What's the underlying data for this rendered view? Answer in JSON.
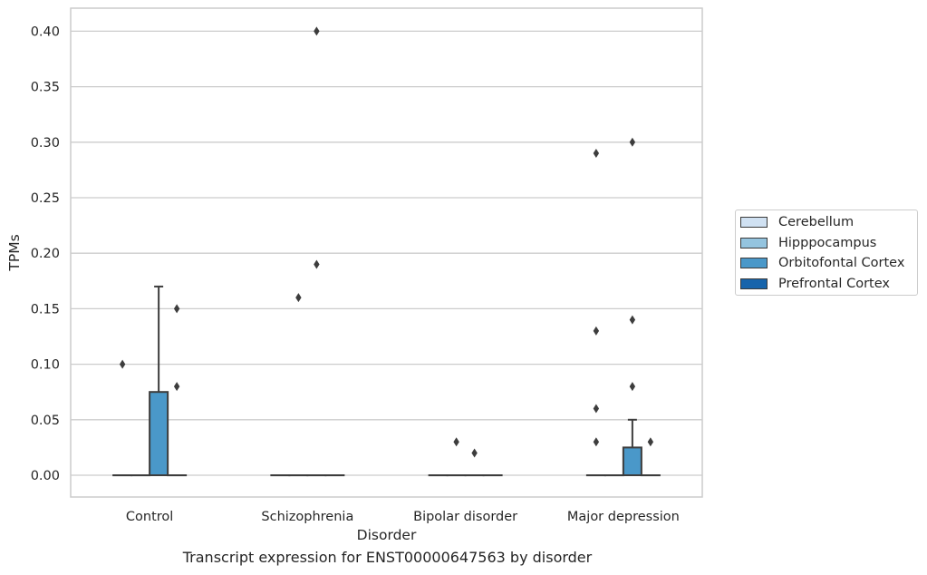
{
  "caption": "Transcript expression for ENST00000647563 by disorder",
  "chart_data": {
    "type": "box",
    "title": "",
    "xlabel": "Disorder",
    "ylabel": "TPMs",
    "ylim": [
      -0.019,
      0.42
    ],
    "yticks": [
      0.0,
      0.05,
      0.1,
      0.15,
      0.2,
      0.25,
      0.3,
      0.35,
      0.4
    ],
    "ytick_labels": [
      "0.00",
      "0.05",
      "0.10",
      "0.15",
      "0.20",
      "0.25",
      "0.30",
      "0.35",
      "0.40"
    ],
    "grid": true,
    "legend_position": "right",
    "categories": [
      "Control",
      "Schizophrenia",
      "Bipolar disorder",
      "Major depression"
    ],
    "series": [
      {
        "name": "Cerebellum",
        "color": "#d0e1f2",
        "boxes": [
          {
            "q1": 0,
            "median": 0,
            "q3": 0,
            "whisker_low": 0,
            "whisker_high": 0,
            "outliers": [
              0.1
            ]
          },
          {
            "q1": 0,
            "median": 0,
            "q3": 0,
            "whisker_low": 0,
            "whisker_high": 0,
            "outliers": []
          },
          {
            "q1": 0,
            "median": 0,
            "q3": 0,
            "whisker_low": 0,
            "whisker_high": 0,
            "outliers": []
          },
          {
            "q1": 0,
            "median": 0,
            "q3": 0,
            "whisker_low": 0,
            "whisker_high": 0,
            "outliers": [
              0.29,
              0.13,
              0.06,
              0.03
            ]
          }
        ]
      },
      {
        "name": "Hipppocampus",
        "color": "#94c4df",
        "boxes": [
          {
            "q1": 0,
            "median": 0,
            "q3": 0,
            "whisker_low": 0,
            "whisker_high": 0,
            "outliers": []
          },
          {
            "q1": 0,
            "median": 0,
            "q3": 0,
            "whisker_low": 0,
            "whisker_high": 0,
            "outliers": [
              0.16
            ]
          },
          {
            "q1": 0,
            "median": 0,
            "q3": 0,
            "whisker_low": 0,
            "whisker_high": 0,
            "outliers": [
              0.03
            ]
          },
          {
            "q1": 0,
            "median": 0,
            "q3": 0,
            "whisker_low": 0,
            "whisker_high": 0,
            "outliers": []
          }
        ]
      },
      {
        "name": "Orbitofontal Cortex",
        "color": "#4a98c9",
        "boxes": [
          {
            "q1": 0,
            "median": 0,
            "q3": 0.075,
            "whisker_low": 0,
            "whisker_high": 0.17,
            "outliers": []
          },
          {
            "q1": 0,
            "median": 0,
            "q3": 0,
            "whisker_low": 0,
            "whisker_high": 0,
            "outliers": [
              0.4,
              0.19
            ]
          },
          {
            "q1": 0,
            "median": 0,
            "q3": 0,
            "whisker_low": 0,
            "whisker_high": 0,
            "outliers": [
              0.02
            ]
          },
          {
            "q1": 0,
            "median": 0,
            "q3": 0.025,
            "whisker_low": 0,
            "whisker_high": 0.05,
            "outliers": [
              0.3,
              0.14,
              0.08
            ]
          }
        ]
      },
      {
        "name": "Prefrontal Cortex",
        "color": "#1764ab",
        "boxes": [
          {
            "q1": 0,
            "median": 0,
            "q3": 0,
            "whisker_low": 0,
            "whisker_high": 0,
            "outliers": [
              0.15,
              0.08
            ]
          },
          {
            "q1": 0,
            "median": 0,
            "q3": 0,
            "whisker_low": 0,
            "whisker_high": 0,
            "outliers": []
          },
          {
            "q1": 0,
            "median": 0,
            "q3": 0,
            "whisker_low": 0,
            "whisker_high": 0,
            "outliers": []
          },
          {
            "q1": 0,
            "median": 0,
            "q3": 0,
            "whisker_low": 0,
            "whisker_high": 0,
            "outliers": [
              0.03
            ]
          }
        ]
      }
    ]
  }
}
